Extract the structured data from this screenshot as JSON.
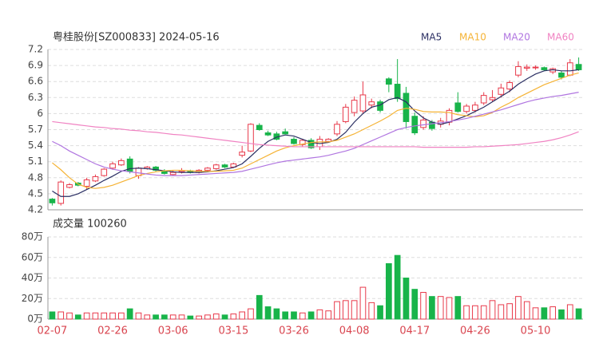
{
  "chart_data": [
    {
      "type": "candlestick",
      "title": "粤桂股份[SZ000833] 2024-05-16",
      "up_color": "#e83a4b",
      "down_color": "#18b44a",
      "grid": true,
      "ylim": [
        4.2,
        7.2
      ],
      "yticks": [
        4.2,
        4.5,
        4.8,
        5.1,
        5.4,
        5.7,
        6,
        6.3,
        6.6,
        6.9,
        7.2
      ],
      "open": [
        4.4,
        4.32,
        4.62,
        4.7,
        4.64,
        4.74,
        4.84,
        4.98,
        5.04,
        5.15,
        4.84,
        4.97,
        5.0,
        4.93,
        4.86,
        4.91,
        4.93,
        4.9,
        4.94,
        4.97,
        5.04,
        5.0,
        5.22,
        5.3,
        5.78,
        5.64,
        5.62,
        5.66,
        5.52,
        5.42,
        5.5,
        5.38,
        5.48,
        5.62,
        5.85,
        6.02,
        6.05,
        6.16,
        6.22,
        6.65,
        6.55,
        6.38,
        5.95,
        5.74,
        5.84,
        5.8,
        5.84,
        6.2,
        6.04,
        6.06,
        6.2,
        6.26,
        6.36,
        6.46,
        6.72,
        6.85,
        6.86,
        6.86,
        6.78,
        6.76,
        6.72,
        6.92
      ],
      "high": [
        4.42,
        4.75,
        4.7,
        4.72,
        4.8,
        4.86,
        4.98,
        5.1,
        5.16,
        5.2,
        5.0,
        5.02,
        5.02,
        4.96,
        4.94,
        4.98,
        4.95,
        4.96,
        5.0,
        5.06,
        5.06,
        5.08,
        5.4,
        5.82,
        5.82,
        5.68,
        5.66,
        5.72,
        5.56,
        5.52,
        5.54,
        5.58,
        5.54,
        5.86,
        6.18,
        6.32,
        6.6,
        6.28,
        6.26,
        6.68,
        7.02,
        6.5,
        6.02,
        5.95,
        5.88,
        5.92,
        6.1,
        6.4,
        6.18,
        6.22,
        6.4,
        6.44,
        6.56,
        6.62,
        6.98,
        6.92,
        6.9,
        6.88,
        6.86,
        6.8,
        7.02,
        7.05
      ],
      "low": [
        4.28,
        4.28,
        4.6,
        4.64,
        4.58,
        4.72,
        4.82,
        4.95,
        5.02,
        4.88,
        4.78,
        4.95,
        4.92,
        4.86,
        4.84,
        4.88,
        4.88,
        4.88,
        4.92,
        4.95,
        4.98,
        4.99,
        5.18,
        5.28,
        5.68,
        5.58,
        5.5,
        5.62,
        5.42,
        5.38,
        5.34,
        5.32,
        5.46,
        5.58,
        5.82,
        5.95,
        6.0,
        6.1,
        6.02,
        6.4,
        6.22,
        5.72,
        5.6,
        5.7,
        5.68,
        5.74,
        5.78,
        6.02,
        6.0,
        6.02,
        6.16,
        6.22,
        6.3,
        6.4,
        6.68,
        6.8,
        6.82,
        6.8,
        6.74,
        6.64,
        6.7,
        6.8
      ],
      "close": [
        4.33,
        4.72,
        4.67,
        4.66,
        4.76,
        4.82,
        4.96,
        5.06,
        5.12,
        4.92,
        4.98,
        5.0,
        4.94,
        4.88,
        4.9,
        4.93,
        4.9,
        4.94,
        4.98,
        5.04,
        5.0,
        5.06,
        5.28,
        5.8,
        5.7,
        5.6,
        5.52,
        5.62,
        5.44,
        5.5,
        5.36,
        5.52,
        5.52,
        5.8,
        6.12,
        6.25,
        6.35,
        6.22,
        6.06,
        6.55,
        6.28,
        5.85,
        5.64,
        5.88,
        5.72,
        5.86,
        6.06,
        6.04,
        6.14,
        6.16,
        6.34,
        6.3,
        6.48,
        6.58,
        6.88,
        6.87,
        6.87,
        6.82,
        6.84,
        6.68,
        6.95,
        6.82
      ],
      "series": [
        {
          "name": "MA5",
          "color": "#2b2f63",
          "values": [
            4.55,
            4.45,
            4.45,
            4.5,
            4.58,
            4.66,
            4.75,
            4.83,
            4.92,
            4.97,
            4.98,
            4.97,
            4.95,
            4.93,
            4.91,
            4.9,
            4.9,
            4.9,
            4.91,
            4.93,
            4.96,
            4.99,
            5.06,
            5.2,
            5.35,
            5.48,
            5.56,
            5.6,
            5.58,
            5.52,
            5.46,
            5.44,
            5.46,
            5.52,
            5.65,
            5.84,
            6.0,
            6.12,
            6.16,
            6.26,
            6.3,
            6.22,
            6.05,
            5.92,
            5.84,
            5.8,
            5.84,
            5.9,
            5.96,
            6.04,
            6.12,
            6.22,
            6.32,
            6.42,
            6.55,
            6.65,
            6.74,
            6.8,
            6.82,
            6.8,
            6.8,
            6.82
          ]
        },
        {
          "name": "MA10",
          "color": "#f5b335",
          "values": [
            5.08,
            4.95,
            4.8,
            4.68,
            4.62,
            4.6,
            4.62,
            4.66,
            4.72,
            4.78,
            4.84,
            4.88,
            4.91,
            4.93,
            4.94,
            4.94,
            4.93,
            4.92,
            4.92,
            4.92,
            4.93,
            4.94,
            4.98,
            5.06,
            5.14,
            5.22,
            5.3,
            5.36,
            5.4,
            5.43,
            5.46,
            5.47,
            5.47,
            5.5,
            5.56,
            5.62,
            5.7,
            5.78,
            5.86,
            5.95,
            6.06,
            6.1,
            6.08,
            6.04,
            6.03,
            6.03,
            6.02,
            5.98,
            5.96,
            5.94,
            5.96,
            6.02,
            6.12,
            6.2,
            6.3,
            6.38,
            6.46,
            6.54,
            6.6,
            6.66,
            6.72,
            6.76
          ]
        },
        {
          "name": "MA20",
          "color": "#b075e0",
          "values": [
            5.48,
            5.4,
            5.3,
            5.22,
            5.14,
            5.06,
            5.0,
            4.96,
            4.93,
            4.91,
            4.89,
            4.87,
            4.85,
            4.84,
            4.84,
            4.84,
            4.85,
            4.86,
            4.87,
            4.88,
            4.89,
            4.9,
            4.92,
            4.96,
            5.0,
            5.04,
            5.08,
            5.11,
            5.13,
            5.15,
            5.17,
            5.19,
            5.22,
            5.26,
            5.3,
            5.35,
            5.42,
            5.49,
            5.56,
            5.63,
            5.7,
            5.74,
            5.77,
            5.79,
            5.81,
            5.83,
            5.85,
            5.88,
            5.91,
            5.95,
            5.99,
            6.03,
            6.07,
            6.12,
            6.17,
            6.22,
            6.26,
            6.29,
            6.32,
            6.34,
            6.37,
            6.4
          ]
        },
        {
          "name": "MA60",
          "color": "#f082c2",
          "values": [
            5.85,
            5.83,
            5.81,
            5.79,
            5.77,
            5.75,
            5.74,
            5.72,
            5.71,
            5.69,
            5.68,
            5.66,
            5.65,
            5.63,
            5.61,
            5.6,
            5.58,
            5.56,
            5.54,
            5.52,
            5.5,
            5.48,
            5.46,
            5.44,
            5.42,
            5.41,
            5.4,
            5.39,
            5.38,
            5.38,
            5.38,
            5.38,
            5.38,
            5.38,
            5.38,
            5.38,
            5.38,
            5.38,
            5.38,
            5.38,
            5.38,
            5.38,
            5.38,
            5.37,
            5.37,
            5.37,
            5.37,
            5.37,
            5.37,
            5.38,
            5.38,
            5.39,
            5.4,
            5.41,
            5.42,
            5.44,
            5.46,
            5.48,
            5.51,
            5.55,
            5.6,
            5.66
          ]
        }
      ]
    },
    {
      "type": "bar",
      "title": "成交量 100260",
      "up_color": "#e83a4b",
      "down_color": "#18b44a",
      "grid": true,
      "ylim": [
        0,
        80
      ],
      "yticks": [
        {
          "value": 0,
          "label": "0万"
        },
        {
          "value": 20,
          "label": "20万"
        },
        {
          "value": 40,
          "label": "40万"
        },
        {
          "value": 60,
          "label": "60万"
        },
        {
          "value": 80,
          "label": "80万"
        }
      ],
      "categories": [
        "02-07",
        null,
        null,
        null,
        null,
        null,
        null,
        "02-26",
        null,
        null,
        null,
        null,
        null,
        null,
        "03-06",
        null,
        null,
        null,
        null,
        null,
        null,
        "03-15",
        null,
        null,
        null,
        null,
        null,
        null,
        "03-26",
        null,
        null,
        null,
        null,
        null,
        null,
        "04-08",
        null,
        null,
        null,
        null,
        null,
        null,
        "04-17",
        null,
        null,
        null,
        null,
        null,
        null,
        "04-26",
        null,
        null,
        null,
        null,
        null,
        null,
        "05-10",
        null,
        null,
        null,
        null,
        null
      ],
      "values": [
        7,
        7,
        6,
        4,
        6,
        6,
        6,
        6,
        6,
        10,
        6,
        4,
        4,
        4,
        4,
        4,
        3,
        3,
        4,
        5,
        4,
        5,
        7,
        10,
        23,
        12,
        10,
        7,
        7,
        6,
        7,
        9,
        8,
        17,
        18,
        18,
        31,
        16,
        13,
        54,
        62,
        40,
        29,
        26,
        22,
        22,
        21,
        22,
        13,
        13,
        13,
        18,
        14,
        15,
        22,
        17,
        11,
        11,
        12,
        9,
        14,
        10
      ]
    }
  ]
}
